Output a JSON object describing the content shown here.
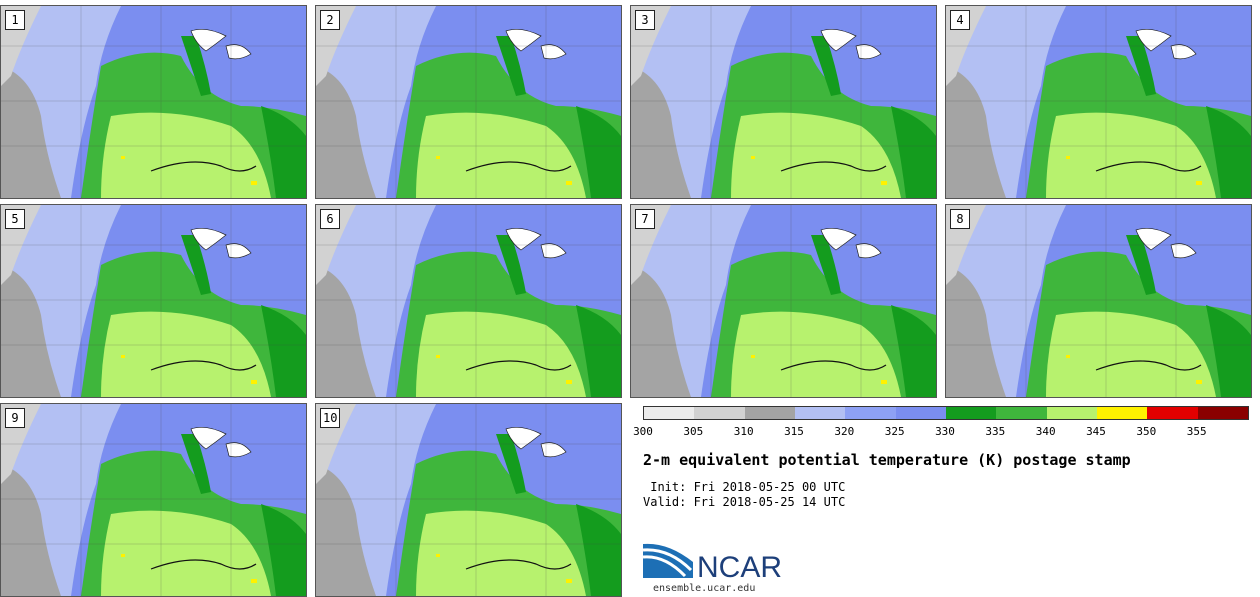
{
  "panels": [
    {
      "label": "1"
    },
    {
      "label": "2"
    },
    {
      "label": "3"
    },
    {
      "label": "4"
    },
    {
      "label": "5"
    },
    {
      "label": "6"
    },
    {
      "label": "7"
    },
    {
      "label": "8"
    },
    {
      "label": "9"
    },
    {
      "label": "10"
    }
  ],
  "colorbar": {
    "ticks": [
      "300",
      "305",
      "310",
      "315",
      "320",
      "325",
      "330",
      "335",
      "340",
      "345",
      "350",
      "355"
    ],
    "colors": [
      "#ececec",
      "#d2d2d2",
      "#a4a4a4",
      "#b3c0f3",
      "#8ea1f4",
      "#7b8ef0",
      "#149c1e",
      "#3fb63c",
      "#b7f26e",
      "#fff200",
      "#e20000",
      "#8a0000"
    ]
  },
  "title": "2-m equivalent potential temperature (K) postage stamp",
  "init": " Init: Fri 2018-05-25 00 UTC",
  "valid": "Valid: Fri 2018-05-25 14 UTC",
  "logo_text": "NCAR",
  "url": "ensemble.ucar.edu"
}
